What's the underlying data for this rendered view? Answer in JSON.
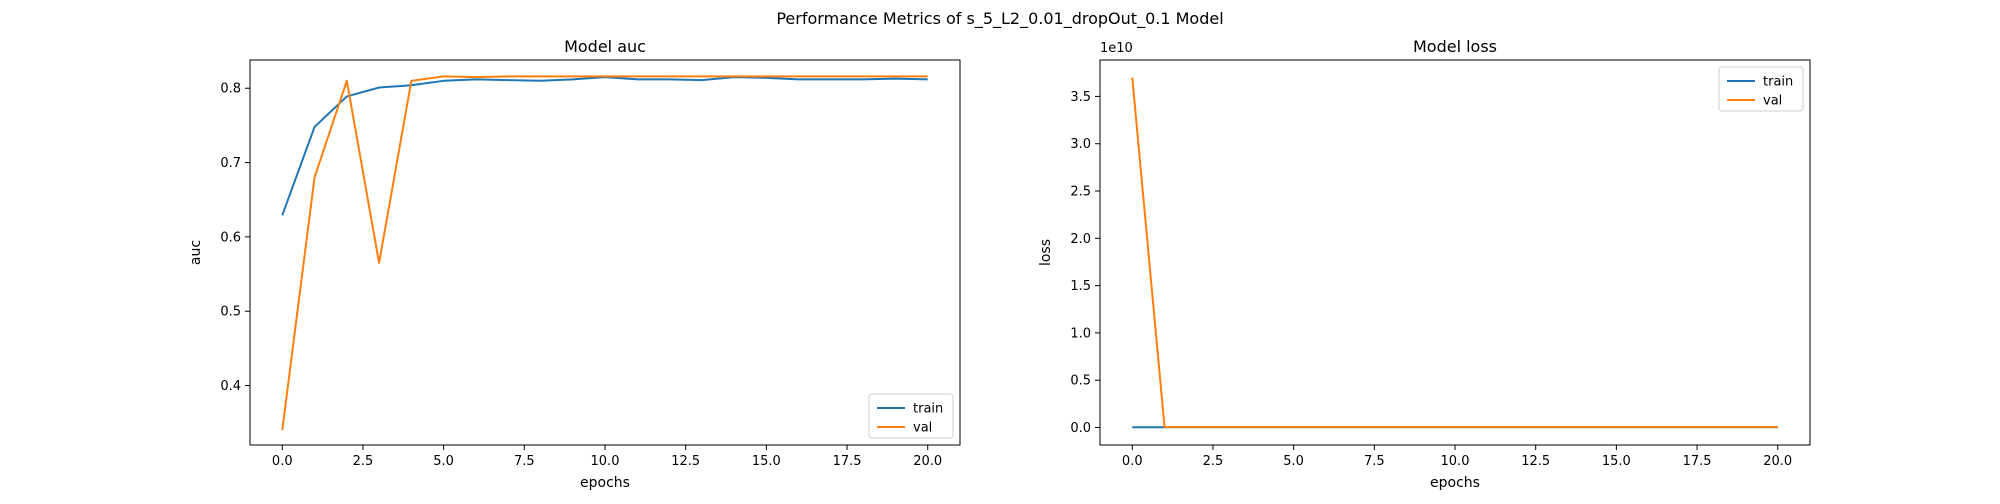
{
  "figure": {
    "suptitle": "Performance Metrics of s_5_L2_0.01_dropOut_0.1 Model"
  },
  "colors": {
    "train": "#1f77b4",
    "val": "#ff7f0e",
    "axis": "#000000",
    "legend_border": "#cccccc"
  },
  "chart_data": [
    {
      "type": "line",
      "title": "Model auc",
      "xlabel": "epochs",
      "ylabel": "auc",
      "xlim": [
        -1.0,
        21.0
      ],
      "ylim": [
        0.32,
        0.838
      ],
      "xticks": [
        0.0,
        2.5,
        5.0,
        7.5,
        10.0,
        12.5,
        15.0,
        17.5,
        20.0
      ],
      "xtick_labels": [
        "0.0",
        "2.5",
        "5.0",
        "7.5",
        "10.0",
        "12.5",
        "15.0",
        "17.5",
        "20.0"
      ],
      "yticks": [
        0.4,
        0.5,
        0.6,
        0.7,
        0.8
      ],
      "ytick_labels": [
        "0.4",
        "0.5",
        "0.6",
        "0.7",
        "0.8"
      ],
      "legend_position": "lower right",
      "grid": false,
      "x": [
        0,
        1,
        2,
        3,
        4,
        5,
        6,
        7,
        8,
        9,
        10,
        11,
        12,
        13,
        14,
        15,
        16,
        17,
        18,
        19,
        20
      ],
      "series": [
        {
          "name": "train",
          "values": [
            0.629,
            0.748,
            0.789,
            0.801,
            0.804,
            0.81,
            0.812,
            0.811,
            0.81,
            0.812,
            0.815,
            0.812,
            0.812,
            0.811,
            0.815,
            0.814,
            0.812,
            0.812,
            0.812,
            0.813,
            0.812
          ]
        },
        {
          "name": "val",
          "values": [
            0.34,
            0.68,
            0.81,
            0.565,
            0.81,
            0.816,
            0.815,
            0.816,
            0.816,
            0.816,
            0.816,
            0.816,
            0.816,
            0.816,
            0.816,
            0.816,
            0.816,
            0.816,
            0.816,
            0.816,
            0.816
          ]
        }
      ]
    },
    {
      "type": "line",
      "title": "Model loss",
      "xlabel": "epochs",
      "ylabel": "loss",
      "offset_label": "1e10",
      "xlim": [
        -1.0,
        21.0
      ],
      "ylim": [
        -0.185,
        3.885
      ],
      "xticks": [
        0.0,
        2.5,
        5.0,
        7.5,
        10.0,
        12.5,
        15.0,
        17.5,
        20.0
      ],
      "xtick_labels": [
        "0.0",
        "2.5",
        "5.0",
        "7.5",
        "10.0",
        "12.5",
        "15.0",
        "17.5",
        "20.0"
      ],
      "yticks": [
        0.0,
        0.5,
        1.0,
        1.5,
        2.0,
        2.5,
        3.0,
        3.5
      ],
      "ytick_labels": [
        "0.0",
        "0.5",
        "1.0",
        "1.5",
        "2.0",
        "2.5",
        "3.0",
        "3.5"
      ],
      "legend_position": "upper right",
      "grid": false,
      "x": [
        0,
        1,
        2,
        3,
        4,
        5,
        6,
        7,
        8,
        9,
        10,
        11,
        12,
        13,
        14,
        15,
        16,
        17,
        18,
        19,
        20
      ],
      "series": [
        {
          "name": "train",
          "values": [
            0.003,
            0.003,
            0.003,
            0.003,
            0.003,
            0.003,
            0.003,
            0.003,
            0.003,
            0.003,
            0.003,
            0.003,
            0.003,
            0.003,
            0.003,
            0.003,
            0.003,
            0.003,
            0.003,
            0.003,
            0.003
          ]
        },
        {
          "name": "val",
          "values": [
            3.7,
            0.005,
            0.005,
            0.005,
            0.005,
            0.005,
            0.005,
            0.005,
            0.005,
            0.005,
            0.005,
            0.005,
            0.005,
            0.005,
            0.005,
            0.005,
            0.005,
            0.005,
            0.005,
            0.005,
            0.005
          ]
        }
      ]
    }
  ]
}
